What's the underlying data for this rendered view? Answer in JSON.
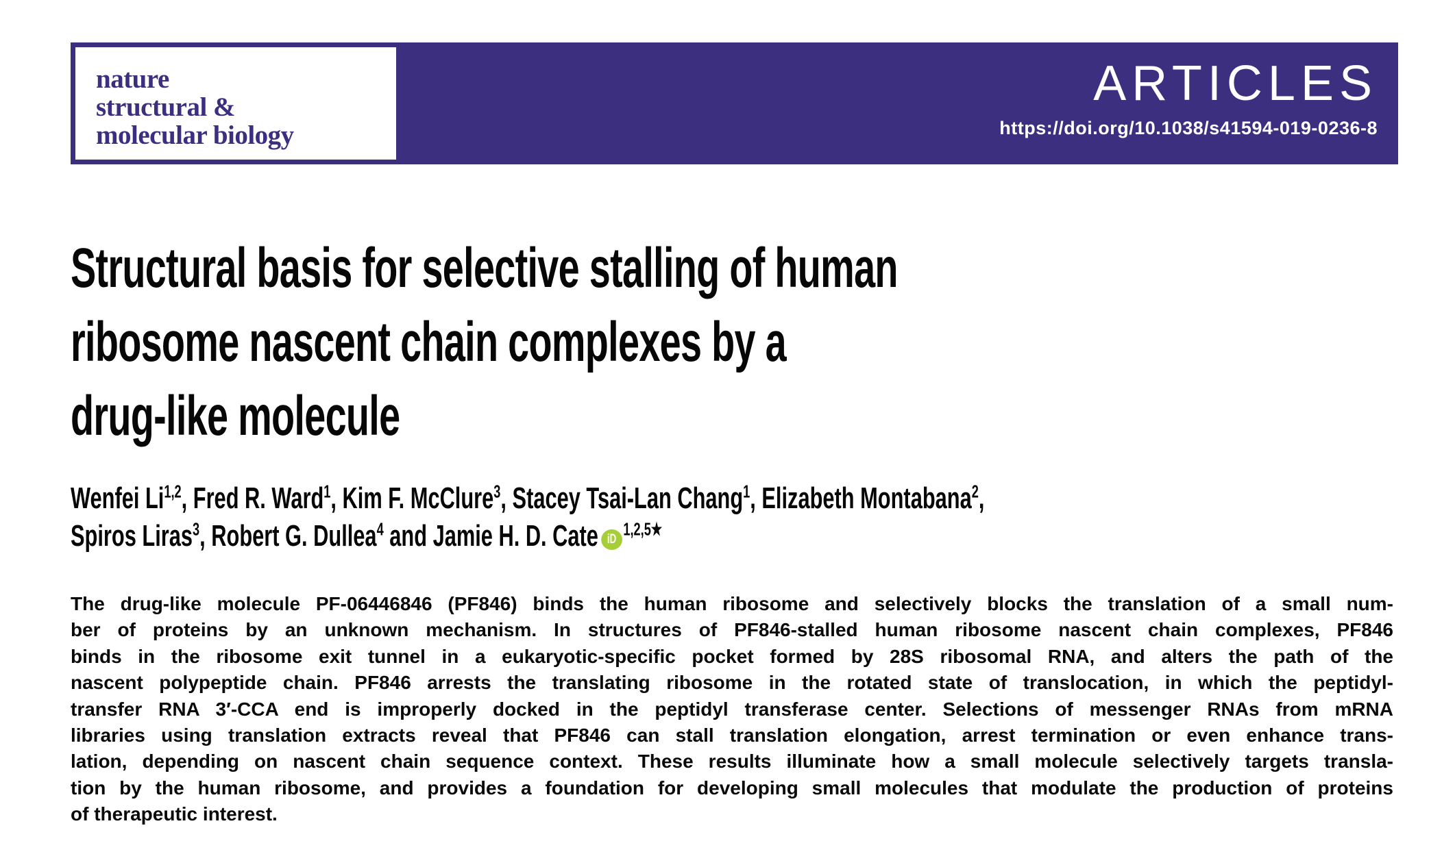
{
  "banner": {
    "kicker": "ARTICLES",
    "doi": "https://doi.org/10.1038/s41594-019-0236-8",
    "background_color": "#3c2f80",
    "text_color": "#ffffff"
  },
  "journal_logo": {
    "lines": [
      "nature",
      "structural &",
      "molecular biology"
    ],
    "color": "#3c2f80"
  },
  "article": {
    "title_lines": [
      "Structural basis for selective stalling of human",
      "ribosome nascent chain complexes by a",
      "drug-like molecule"
    ],
    "authors": {
      "line1": [
        {
          "text": "Wenfei Li"
        },
        {
          "sup": "1,2"
        },
        {
          "text": ", Fred R. Ward"
        },
        {
          "sup": "1"
        },
        {
          "text": ", Kim F. McClure"
        },
        {
          "sup": "3"
        },
        {
          "text": ", Stacey Tsai-Lan Chang"
        },
        {
          "sup": "1"
        },
        {
          "text": ", Elizabeth Montabana"
        },
        {
          "sup": "2"
        },
        {
          "text": ","
        }
      ],
      "line2": [
        {
          "text": "Spiros Liras"
        },
        {
          "sup": "3"
        },
        {
          "text": ", Robert G. Dullea"
        },
        {
          "sup": "4"
        },
        {
          "text": " and Jamie H. D. Cate"
        },
        {
          "icon": "orcid",
          "label": "iD"
        },
        {
          "sup": "1,2,5★"
        }
      ]
    },
    "orcid_color": "#a6ce39",
    "abstract_lines": [
      "The drug-like molecule PF-06446846 (PF846) binds the human ribosome and selectively blocks the translation of a small num-",
      "ber of proteins by an unknown mechanism. In structures of PF846-stalled human ribosome nascent chain complexes, PF846",
      "binds in the ribosome exit tunnel in a eukaryotic-specific pocket formed by 28S ribosomal RNA, and alters the path of the",
      "nascent polypeptide chain. PF846 arrests the translating ribosome in the rotated state of translocation, in which the peptidyl-",
      "transfer RNA 3′-CCA end is improperly docked in the peptidyl transferase center. Selections of messenger RNAs from mRNA",
      "libraries using translation extracts reveal that PF846 can stall translation elongation, arrest termination or even enhance trans-",
      "lation, depending on nascent chain sequence context. These results illuminate how a small molecule selectively targets transla-",
      "tion by the human ribosome, and provides a foundation for developing small molecules that modulate the production of proteins",
      "of therapeutic interest."
    ]
  }
}
